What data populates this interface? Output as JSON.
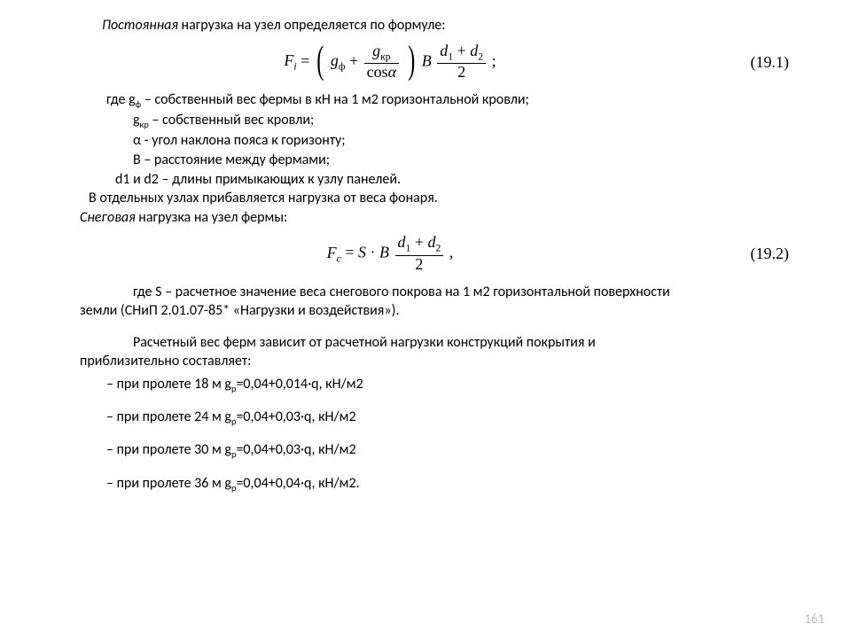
{
  "colors": {
    "text": "#000000",
    "background": "#ffffff",
    "page_num": "#bfbfbf"
  },
  "font": {
    "body": "Calibri",
    "math": "Times New Roman",
    "body_size_pt": 12,
    "math_size_pt": 13
  },
  "intro_italic": "Постоянная",
  "intro_rest": " нагрузка на узел определяется по формуле:",
  "eq1": {
    "lhs_F": "F",
    "lhs_sub": "i",
    "g_phi": "g",
    "g_phi_sub": "ф",
    "g_kr": "g",
    "g_kr_sub": "кр",
    "cos": "cos",
    "alpha": "α",
    "B": "B",
    "d1": "d",
    "d1_sub": "1",
    "d2": "d",
    "d2_sub": "2",
    "two": "2",
    "tail": ";",
    "num": "(19.1)"
  },
  "where1": {
    "l1a": "где g",
    "l1b": " – собственный вес фермы в кН на 1 м2 горизонтальной кровли;",
    "l1sub": "ф",
    "l2a": "g",
    "l2sub": "кр",
    "l2b": " – собственный вес кровли;",
    "l3": "α - угол наклона пояса к горизонту;",
    "l4": "В – расстояние между фермами;",
    "l5": "d1 и d2 – длины примыкающих к узлу панелей.",
    "p1": "В отдельных узлах прибавляется нагрузка от веса фонаря.",
    "snow_it": "Снеговая",
    "snow_rest": " нагрузка на узел фермы:"
  },
  "eq2": {
    "lhs_F": "F",
    "lhs_sub": "c",
    "S": "S",
    "dot": "·",
    "B": "B",
    "d1": "d",
    "d1_sub": "1",
    "d2": "d",
    "d2_sub": "2",
    "two": "2",
    "tail": ",",
    "num": "(19.2)"
  },
  "where2_first": "где S – расчетное значение веса снегового покрова на 1 м2 горизонтальной поверхности",
  "where2_cont": "земли (СНиП 2.01.07-85* «Нагрузки и воздействия»).",
  "calc_first": "Расчетный вес ферм зависит от расчетной нагрузки конструкций покрытия и",
  "calc_cont": "приблизительно составляет:",
  "spans": [
    {
      "pre": "– при пролете 18 м g",
      "sub": "р",
      "post": "=0,04+0,014·q, кН/м2"
    },
    {
      "pre": "– при пролете 24 м g",
      "sub": "р",
      "post": "=0,04+0,03·q, кН/м2"
    },
    {
      "pre": "– при пролете 30 м g",
      "sub": "р",
      "post": "=0,04+0,03·q, кН/м2"
    },
    {
      "pre": "– при пролете 36 м g",
      "sub": "р",
      "post": "=0,04+0,04·q, кН/м2."
    }
  ],
  "page_number": "161"
}
